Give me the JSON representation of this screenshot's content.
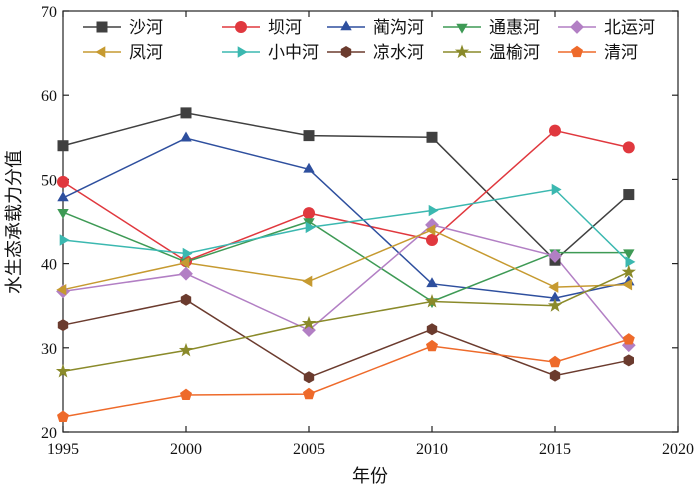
{
  "chart_data": {
    "type": "line",
    "x": [
      1995,
      2000,
      2005,
      2010,
      2015,
      2018
    ],
    "xlabel": "年份",
    "ylabel": "水生态承载力分值",
    "xlim": [
      1995,
      2020
    ],
    "ylim": [
      20,
      70
    ],
    "xticks": [
      1995,
      2000,
      2005,
      2010,
      2015,
      2020
    ],
    "yticks": [
      20,
      30,
      40,
      50,
      60,
      70
    ],
    "grid": false,
    "legend_position": "top",
    "series": [
      {
        "name": "沙河",
        "color": "#404040",
        "marker": "square",
        "values": [
          54.0,
          57.9,
          55.2,
          55.0,
          40.4,
          48.2
        ]
      },
      {
        "name": "坝河",
        "color": "#e0383e",
        "marker": "circle",
        "values": [
          49.7,
          40.3,
          46.0,
          42.8,
          55.8,
          53.8
        ]
      },
      {
        "name": "蔺沟河",
        "color": "#2e4f9e",
        "marker": "triangle",
        "values": [
          47.8,
          54.9,
          51.2,
          37.6,
          35.9,
          37.8
        ]
      },
      {
        "name": "通惠河",
        "color": "#3e9a55",
        "marker": "tri-down",
        "values": [
          46.1,
          40.2,
          45.0,
          35.5,
          41.3,
          41.3
        ]
      },
      {
        "name": "北运河",
        "color": "#b27fc4",
        "marker": "diamond",
        "values": [
          36.7,
          38.8,
          32.1,
          44.6,
          40.9,
          30.3
        ]
      },
      {
        "name": "凤河",
        "color": "#c69a30",
        "marker": "tri-left",
        "values": [
          36.9,
          40.1,
          37.9,
          44.0,
          37.2,
          37.5
        ]
      },
      {
        "name": "小中河",
        "color": "#3bb8b0",
        "marker": "tri-right",
        "values": [
          42.8,
          41.2,
          44.3,
          46.3,
          48.8,
          40.2
        ]
      },
      {
        "name": "凉水河",
        "color": "#6b3b2e",
        "marker": "hexagon",
        "values": [
          32.7,
          35.7,
          26.5,
          32.2,
          26.7,
          28.5
        ]
      },
      {
        "name": "温榆河",
        "color": "#8a8a2a",
        "marker": "star",
        "values": [
          27.2,
          29.7,
          32.9,
          35.5,
          35.0,
          39.0
        ]
      },
      {
        "name": "清河",
        "color": "#ee6a2a",
        "marker": "pentagon",
        "values": [
          21.8,
          24.4,
          24.5,
          30.2,
          28.3,
          31.0
        ]
      }
    ]
  }
}
